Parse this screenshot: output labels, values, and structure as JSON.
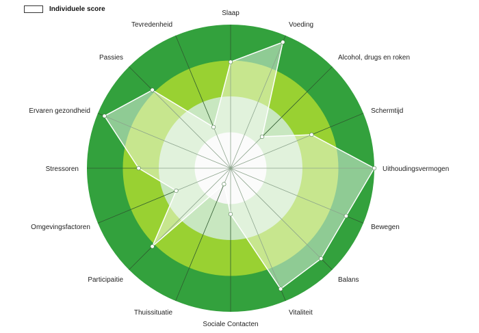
{
  "chart_data": {
    "type": "radar",
    "title": "",
    "legend": {
      "label": "Individuele score",
      "placement": "top-left"
    },
    "categories": [
      "Slaap",
      "Voeding",
      "Alcohol, drugs en roken",
      "Schermtijd",
      "Uithoudingsvermogen",
      "Bewegen",
      "Balans",
      "Vitaliteit",
      "Sociale Contacten",
      "Thuissituatie",
      "Participaitie",
      "Omgevingsfactoren",
      "Stressoren",
      "Ervaren gezondheid",
      "Passies",
      "Tevredenheid"
    ],
    "series": [
      {
        "name": "Individuele score",
        "values": [
          0.74,
          0.95,
          0.31,
          0.61,
          1.0,
          0.87,
          0.89,
          0.91,
          0.32,
          0.12,
          0.77,
          0.41,
          0.64,
          0.95,
          0.77,
          0.31
        ]
      }
    ],
    "rlim": [
      0,
      1
    ],
    "bands": [
      {
        "outer": 1.0,
        "color": "#33a13d"
      },
      {
        "outer": 0.75,
        "color": "#99d132"
      },
      {
        "outer": 0.5,
        "color": "#c8e7c0"
      },
      {
        "outer": 0.25,
        "color": "#f7f7f7"
      }
    ],
    "colors": {
      "spoke": "#2f5a2f",
      "polygon_fill": "#ffffff",
      "polygon_stroke": "#ffffff",
      "point": "#ffffff",
      "point_stroke": "#4a7a4a"
    }
  }
}
